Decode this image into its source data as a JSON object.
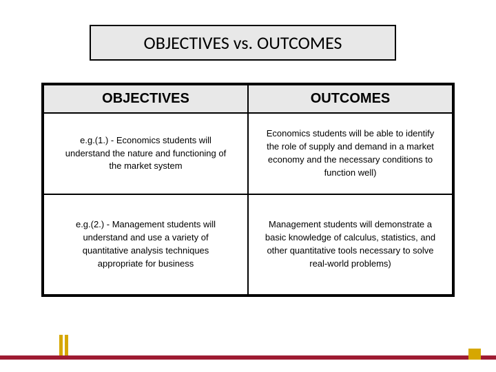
{
  "title": "OBJECTIVES vs. OUTCOMES",
  "table": {
    "headers": [
      "OBJECTIVES",
      "OUTCOMES"
    ],
    "rows": [
      {
        "objective": "e.g.(1.) - Economics students will understand the nature and functioning of the market system",
        "outcome": "Economics students will be able to identify the role of supply and demand in a market economy and the necessary conditions to function well)"
      },
      {
        "objective": "e.g.(2.) - Management students will understand and use a variety of quantitative analysis techniques appropriate for business",
        "outcome": "Management students will demonstrate a basic knowledge of calculus, statistics, and other quantitative tools necessary to solve real-world problems)"
      }
    ]
  },
  "colors": {
    "header_bg": "#e8e8e8",
    "border": "#000000",
    "footer_red": "#9e1b32",
    "footer_gold": "#d6a700",
    "page_bg": "#ffffff",
    "text": "#000000"
  },
  "typography": {
    "title_fontsize": 26,
    "header_fontsize": 20,
    "cell_fontsize": 13
  }
}
